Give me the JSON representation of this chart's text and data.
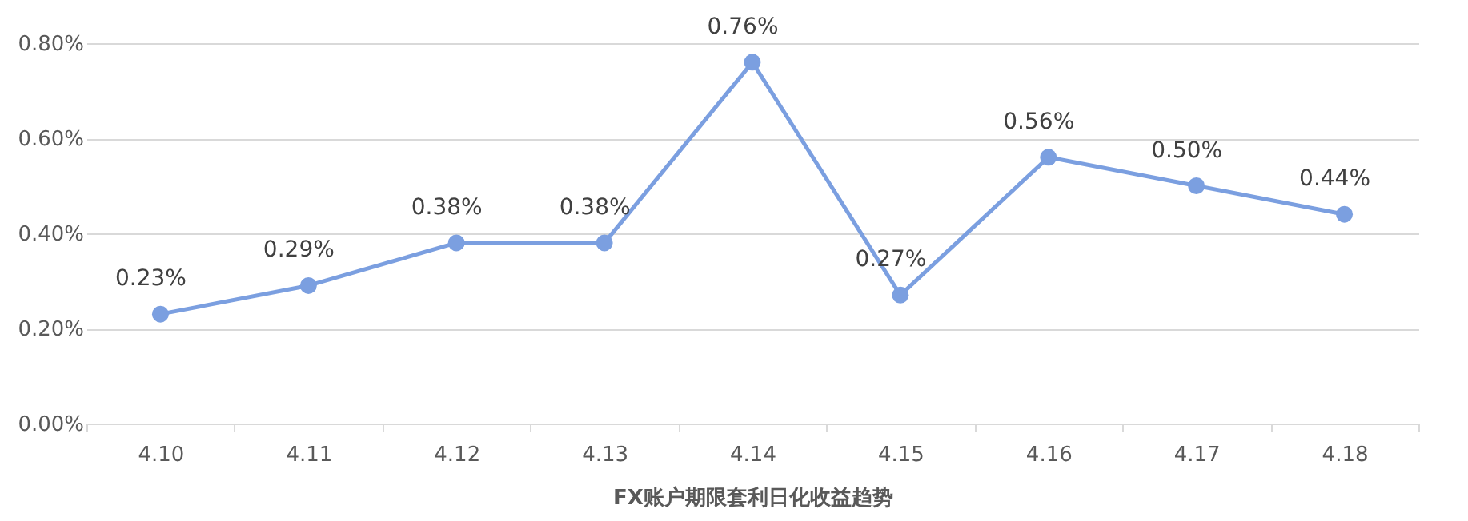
{
  "chart_data": {
    "type": "line",
    "xlabel": "FX账户期限套利日化收益趋势",
    "categories": [
      "4.10",
      "4.11",
      "4.12",
      "4.13",
      "4.14",
      "4.15",
      "4.16",
      "4.17",
      "4.18"
    ],
    "series": [
      {
        "color": "#7b9fe0",
        "values": [
          0.23,
          0.29,
          0.38,
          0.38,
          0.76,
          0.27,
          0.56,
          0.5,
          0.44
        ],
        "value_labels": [
          "0.23%",
          "0.29%",
          "0.38%",
          "0.38%",
          "0.76%",
          "0.27%",
          "0.56%",
          "0.50%",
          "0.44%"
        ]
      }
    ],
    "ylim": [
      0,
      0.8
    ],
    "yticks": [
      {
        "value": 0,
        "label": "0.00%"
      },
      {
        "value": 0.2,
        "label": "0.20%"
      },
      {
        "value": 0.4,
        "label": "0.40%"
      },
      {
        "value": 0.6,
        "label": "0.60%"
      },
      {
        "value": 0.8,
        "label": "0.80%"
      }
    ],
    "grid": "y",
    "marker": "circle",
    "line_style": "solid"
  }
}
